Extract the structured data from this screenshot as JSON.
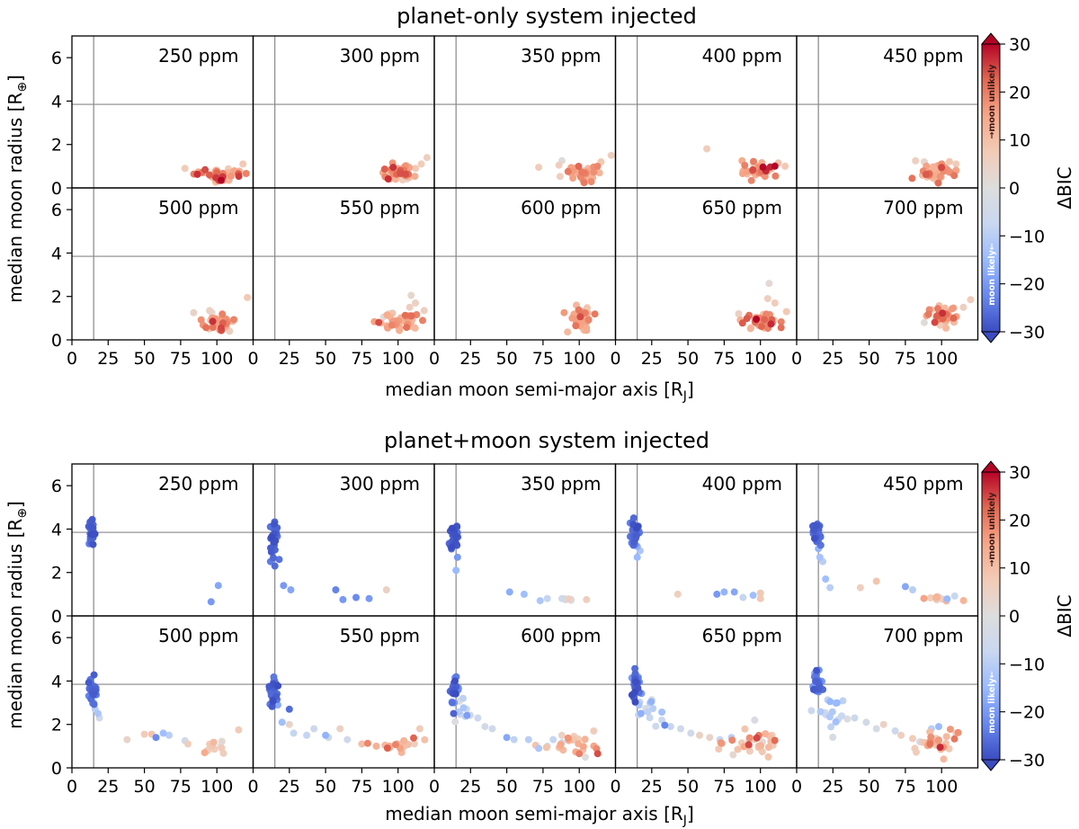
{
  "figure": {
    "sections": [
      {
        "title": "planet-only system injected",
        "kind": "planet-only"
      },
      {
        "title": "planet+moon system injected",
        "kind": "planet+moon"
      }
    ],
    "xlabel": "median moon semi-major axis [R",
    "xlabel_sub": "J",
    "xlabel_end": "]",
    "ylabel": "median moon radius [R",
    "ylabel_sub": "⊕",
    "ylabel_end": "]",
    "colorbar": {
      "label": "ΔBIC",
      "ticks": [
        "30",
        "20",
        "10",
        "0",
        "−10",
        "−20",
        "−30"
      ],
      "upper_text": "→moon unlikely",
      "lower_text": "moon likely←",
      "cmap": [
        "#3b4cc0",
        "#6788ee",
        "#9abbff",
        "#c9d7f0",
        "#dddddd",
        "#f2cbb7",
        "#f7a889",
        "#e26952",
        "#b40426"
      ]
    },
    "x_ticks": [
      "0",
      "25",
      "50",
      "75",
      "100"
    ],
    "y_ticks": [
      "0",
      "2",
      "4",
      "6"
    ]
  },
  "chart_data": {
    "type": "scatter",
    "panel_labels": [
      "250 ppm",
      "300 ppm",
      "350 ppm",
      "400 ppm",
      "450 ppm",
      "500 ppm",
      "550 ppm",
      "600 ppm",
      "650 ppm",
      "700 ppm"
    ],
    "noise_levels_ppm": [
      250,
      300,
      350,
      400,
      450,
      500,
      550,
      600,
      650,
      700
    ],
    "xlim": [
      0,
      125
    ],
    "ylim": [
      0,
      7
    ],
    "clim": [
      -30,
      30
    ],
    "reference_lines": {
      "true_semi_major_axis": 15,
      "true_moon_radius": 3.85
    },
    "series_note": "approximate summary clusters read from the figure: cx, cy = center (data units), sx, sy = spread, n = points, d = mean ΔBIC",
    "planet_only": [
      {
        "panel": "250 ppm",
        "clusters": [
          {
            "cx": 102,
            "cy": 0.65,
            "sx": 9,
            "sy": 0.15,
            "n": 40,
            "d": 17,
            "dv": 6
          }
        ],
        "points": [
          [
            78,
            0.9,
            7
          ],
          [
            118,
            1.1,
            8
          ],
          [
            103,
            0.35,
            30
          ]
        ]
      },
      {
        "panel": "300 ppm",
        "clusters": [
          {
            "cx": 100,
            "cy": 0.65,
            "sx": 6,
            "sy": 0.2,
            "n": 40,
            "d": 16,
            "dv": 5
          }
        ],
        "points": [
          [
            112,
            0.9,
            8
          ],
          [
            116,
            1.1,
            7
          ],
          [
            120,
            1.4,
            6
          ],
          [
            106,
            0.4,
            1
          ]
        ]
      },
      {
        "panel": "350 ppm",
        "clusters": [
          {
            "cx": 102,
            "cy": 0.7,
            "sx": 7,
            "sy": 0.2,
            "n": 40,
            "d": 15,
            "dv": 5
          }
        ],
        "points": [
          [
            72,
            0.95,
            7
          ],
          [
            86,
            1.05,
            6
          ],
          [
            115,
            1.2,
            8
          ],
          [
            122,
            1.5,
            6
          ],
          [
            88,
            1.25,
            1
          ]
        ]
      },
      {
        "panel": "400 ppm",
        "clusters": [
          {
            "cx": 100,
            "cy": 0.8,
            "sx": 6,
            "sy": 0.2,
            "n": 40,
            "d": 16,
            "dv": 5
          }
        ],
        "points": [
          [
            63,
            1.8,
            7
          ],
          [
            117,
            1.0,
            8
          ]
        ]
      },
      {
        "panel": "450 ppm",
        "clusters": [
          {
            "cx": 100,
            "cy": 0.75,
            "sx": 6,
            "sy": 0.2,
            "n": 38,
            "d": 14,
            "dv": 5
          }
        ],
        "points": [
          [
            82,
            1.25,
            6
          ],
          [
            88,
            1.2,
            3
          ],
          [
            110,
            1.1,
            7
          ],
          [
            90,
            0.5,
            9
          ]
        ]
      },
      {
        "panel": "500 ppm",
        "clusters": [
          {
            "cx": 100,
            "cy": 0.8,
            "sx": 6,
            "sy": 0.2,
            "n": 40,
            "d": 15,
            "dv": 5
          }
        ],
        "points": [
          [
            84,
            1.25,
            4
          ],
          [
            95,
            1.35,
            5
          ],
          [
            121,
            1.95,
            8
          ],
          [
            103,
            0.55,
            25
          ]
        ]
      },
      {
        "panel": "550 ppm",
        "clusters": [
          {
            "cx": 100,
            "cy": 0.85,
            "sx": 8,
            "sy": 0.2,
            "n": 42,
            "d": 14,
            "dv": 5
          }
        ],
        "points": [
          [
            108,
            1.5,
            6
          ],
          [
            112,
            1.7,
            5
          ],
          [
            118,
            1.35,
            6
          ],
          [
            109,
            2.05,
            3
          ],
          [
            90,
            1.05,
            1
          ]
        ]
      },
      {
        "panel": "600 ppm",
        "clusters": [
          {
            "cx": 101,
            "cy": 1.0,
            "sx": 4,
            "sy": 0.25,
            "n": 42,
            "d": 15,
            "dv": 4
          }
        ],
        "points": [
          [
            98,
            1.6,
            12
          ]
        ]
      },
      {
        "panel": "650 ppm",
        "clusters": [
          {
            "cx": 100,
            "cy": 0.9,
            "sx": 6,
            "sy": 0.2,
            "n": 42,
            "d": 16,
            "dv": 5
          }
        ],
        "points": [
          [
            106,
            2.6,
            2
          ],
          [
            105,
            1.9,
            6
          ],
          [
            110,
            1.7,
            7
          ],
          [
            118,
            1.3,
            8
          ],
          [
            85,
            1.2,
            5
          ]
        ]
      },
      {
        "panel": "700 ppm",
        "clusters": [
          {
            "cx": 100,
            "cy": 1.1,
            "sx": 5,
            "sy": 0.25,
            "n": 42,
            "d": 15,
            "dv": 5
          }
        ],
        "points": [
          [
            115,
            1.5,
            6
          ],
          [
            120,
            1.85,
            7
          ],
          [
            88,
            0.8,
            1
          ]
        ]
      }
    ],
    "planet_moon": [
      {
        "panel": "250 ppm",
        "clusters": [
          {
            "cx": 14,
            "cy": 3.8,
            "sx": 1.5,
            "sy": 0.3,
            "n": 30,
            "d": -27,
            "dv": 2
          }
        ],
        "points": [
          [
            96,
            0.65,
            -20
          ],
          [
            101,
            1.4,
            -18
          ]
        ]
      },
      {
        "panel": "300 ppm",
        "clusters": [
          {
            "cx": 14,
            "cy": 3.7,
            "sx": 1.6,
            "sy": 0.35,
            "n": 30,
            "d": -27,
            "dv": 2
          }
        ],
        "points": [
          [
            12,
            2.5,
            -24
          ],
          [
            15,
            2.3,
            -26
          ],
          [
            18,
            2.6,
            -25
          ],
          [
            21,
            1.4,
            -20
          ],
          [
            26,
            1.2,
            -18
          ],
          [
            57,
            1.2,
            -23
          ],
          [
            62,
            0.75,
            -20
          ],
          [
            71,
            0.85,
            -22
          ],
          [
            80,
            0.8,
            -20
          ],
          [
            92,
            1.2,
            5
          ]
        ]
      },
      {
        "panel": "350 ppm",
        "clusters": [
          {
            "cx": 14,
            "cy": 3.75,
            "sx": 1.5,
            "sy": 0.35,
            "n": 30,
            "d": -27,
            "dv": 2
          },
          {
            "cx": 95,
            "cy": 0.75,
            "sx": 7,
            "sy": 0.05,
            "n": 6,
            "d": 0,
            "dv": 5
          }
        ],
        "points": [
          [
            16,
            2.7,
            -20
          ],
          [
            15,
            2.1,
            -15
          ],
          [
            52,
            1.1,
            -17
          ],
          [
            62,
            1.0,
            -14
          ],
          [
            73,
            0.7,
            -12
          ],
          [
            78,
            0.8,
            -8
          ],
          [
            88,
            0.8,
            -4
          ],
          [
            105,
            0.75,
            6
          ]
        ]
      },
      {
        "panel": "400 ppm",
        "clusters": [
          {
            "cx": 13,
            "cy": 3.8,
            "sx": 1.5,
            "sy": 0.3,
            "n": 30,
            "d": -27,
            "dv": 2
          }
        ],
        "points": [
          [
            15,
            3.2,
            -17
          ],
          [
            17,
            3.0,
            -12
          ],
          [
            15,
            2.7,
            -15
          ],
          [
            43,
            1.0,
            6
          ],
          [
            70,
            1.0,
            -20
          ],
          [
            75,
            1.1,
            -16
          ],
          [
            82,
            1.1,
            -18
          ],
          [
            88,
            0.85,
            -8
          ],
          [
            95,
            0.95,
            -14
          ],
          [
            100,
            0.8,
            8
          ],
          [
            100,
            1.05,
            8
          ]
        ]
      },
      {
        "panel": "450 ppm",
        "clusters": [
          {
            "cx": 14,
            "cy": 3.8,
            "sx": 1.3,
            "sy": 0.25,
            "n": 28,
            "d": -26,
            "dv": 2
          },
          {
            "cx": 98,
            "cy": 0.8,
            "sx": 8,
            "sy": 0.1,
            "n": 12,
            "d": 3,
            "dv": 9
          }
        ],
        "points": [
          [
            15,
            3.1,
            -16
          ],
          [
            16,
            2.7,
            -13
          ],
          [
            18,
            2.5,
            -10
          ],
          [
            20,
            1.7,
            -14
          ],
          [
            23,
            1.3,
            -10
          ],
          [
            44,
            1.3,
            6
          ],
          [
            55,
            1.6,
            9
          ],
          [
            75,
            1.35,
            -18
          ],
          [
            80,
            1.2,
            -10
          ]
        ]
      },
      {
        "panel": "500 ppm",
        "clusters": [
          {
            "cx": 14,
            "cy": 3.6,
            "sx": 1.5,
            "sy": 0.3,
            "n": 28,
            "d": -26,
            "dv": 2
          },
          {
            "cx": 98,
            "cy": 0.95,
            "sx": 5,
            "sy": 0.2,
            "n": 14,
            "d": 8,
            "dv": 6
          }
        ],
        "points": [
          [
            15,
            3.0,
            -15
          ],
          [
            16,
            2.7,
            -10
          ],
          [
            18,
            2.5,
            -12
          ],
          [
            19,
            2.3,
            -5
          ],
          [
            38,
            1.3,
            4
          ],
          [
            50,
            1.55,
            7
          ],
          [
            55,
            1.55,
            9
          ],
          [
            58,
            1.4,
            -22
          ],
          [
            63,
            1.6,
            -14
          ],
          [
            67,
            1.5,
            -10
          ],
          [
            78,
            1.25,
            -5
          ],
          [
            80,
            1.1,
            6
          ],
          [
            115,
            1.75,
            7
          ]
        ]
      },
      {
        "panel": "550 ppm",
        "clusters": [
          {
            "cx": 14,
            "cy": 3.6,
            "sx": 1.5,
            "sy": 0.35,
            "n": 28,
            "d": -26,
            "dv": 2
          },
          {
            "cx": 100,
            "cy": 1.05,
            "sx": 7,
            "sy": 0.2,
            "n": 20,
            "d": 10,
            "dv": 6
          }
        ],
        "points": [
          [
            17,
            2.9,
            -18
          ],
          [
            20,
            2.1,
            -14
          ],
          [
            25,
            2.7,
            -26
          ],
          [
            28,
            1.6,
            -8
          ],
          [
            25,
            2.0,
            4
          ],
          [
            37,
            1.5,
            -8
          ],
          [
            42,
            1.8,
            -6
          ],
          [
            50,
            1.5,
            -16
          ],
          [
            52,
            1.4,
            -6
          ],
          [
            60,
            1.8,
            5
          ],
          [
            65,
            1.3,
            -5
          ],
          [
            75,
            1.1,
            10
          ],
          [
            85,
            1.0,
            13
          ],
          [
            115,
            1.8,
            7
          ]
        ]
      },
      {
        "panel": "600 ppm",
        "clusters": [
          {
            "cx": 14,
            "cy": 3.6,
            "sx": 1.5,
            "sy": 0.35,
            "n": 26,
            "d": -25,
            "dv": 3
          },
          {
            "cx": 20,
            "cy": 2.6,
            "sx": 4,
            "sy": 0.4,
            "n": 10,
            "d": -8,
            "dv": 5
          },
          {
            "cx": 100,
            "cy": 1.0,
            "sx": 8,
            "sy": 0.25,
            "n": 24,
            "d": 12,
            "dv": 6
          }
        ],
        "points": [
          [
            30,
            2.3,
            -6
          ],
          [
            35,
            1.9,
            -4
          ],
          [
            40,
            1.8,
            -5
          ],
          [
            50,
            1.4,
            -18
          ],
          [
            55,
            1.3,
            -9
          ],
          [
            65,
            1.3,
            -10
          ],
          [
            72,
            0.9,
            -12
          ],
          [
            78,
            1.0,
            -5
          ],
          [
            82,
            1.3,
            -8
          ],
          [
            88,
            1.5,
            5
          ],
          [
            110,
            1.7,
            7
          ]
        ]
      },
      {
        "panel": "650 ppm",
        "clusters": [
          {
            "cx": 14,
            "cy": 3.8,
            "sx": 1.5,
            "sy": 0.35,
            "n": 26,
            "d": -25,
            "dv": 3
          },
          {
            "cx": 22,
            "cy": 2.6,
            "sx": 5,
            "sy": 0.5,
            "n": 14,
            "d": -8,
            "dv": 5
          },
          {
            "cx": 95,
            "cy": 1.1,
            "sx": 10,
            "sy": 0.25,
            "n": 30,
            "d": 11,
            "dv": 7
          }
        ],
        "points": [
          [
            32,
            2.2,
            -6
          ],
          [
            38,
            1.9,
            -8
          ],
          [
            45,
            1.8,
            -5
          ],
          [
            52,
            1.6,
            -5
          ],
          [
            58,
            1.5,
            5
          ],
          [
            65,
            1.4,
            4
          ],
          [
            72,
            1.3,
            -8
          ],
          [
            80,
            1.4,
            -10
          ],
          [
            96,
            2.2,
            -2
          ],
          [
            108,
            1.5,
            7
          ]
        ]
      },
      {
        "panel": "700 ppm",
        "clusters": [
          {
            "cx": 14,
            "cy": 3.9,
            "sx": 1.5,
            "sy": 0.4,
            "n": 26,
            "d": -24,
            "dv": 3
          },
          {
            "cx": 25,
            "cy": 2.6,
            "sx": 6,
            "sy": 0.5,
            "n": 18,
            "d": -8,
            "dv": 6
          },
          {
            "cx": 100,
            "cy": 1.05,
            "sx": 7,
            "sy": 0.25,
            "n": 28,
            "d": 11,
            "dv": 6
          }
        ],
        "points": [
          [
            40,
            2.3,
            -6
          ],
          [
            48,
            2.1,
            -4
          ],
          [
            55,
            1.8,
            -3
          ],
          [
            60,
            2.0,
            5
          ],
          [
            68,
            1.7,
            -6
          ],
          [
            72,
            1.5,
            6
          ],
          [
            80,
            1.35,
            7
          ],
          [
            85,
            1.2,
            -4
          ],
          [
            93,
            1.8,
            -10
          ],
          [
            98,
            1.9,
            -15
          ],
          [
            110,
            1.6,
            7
          ]
        ]
      }
    ]
  }
}
